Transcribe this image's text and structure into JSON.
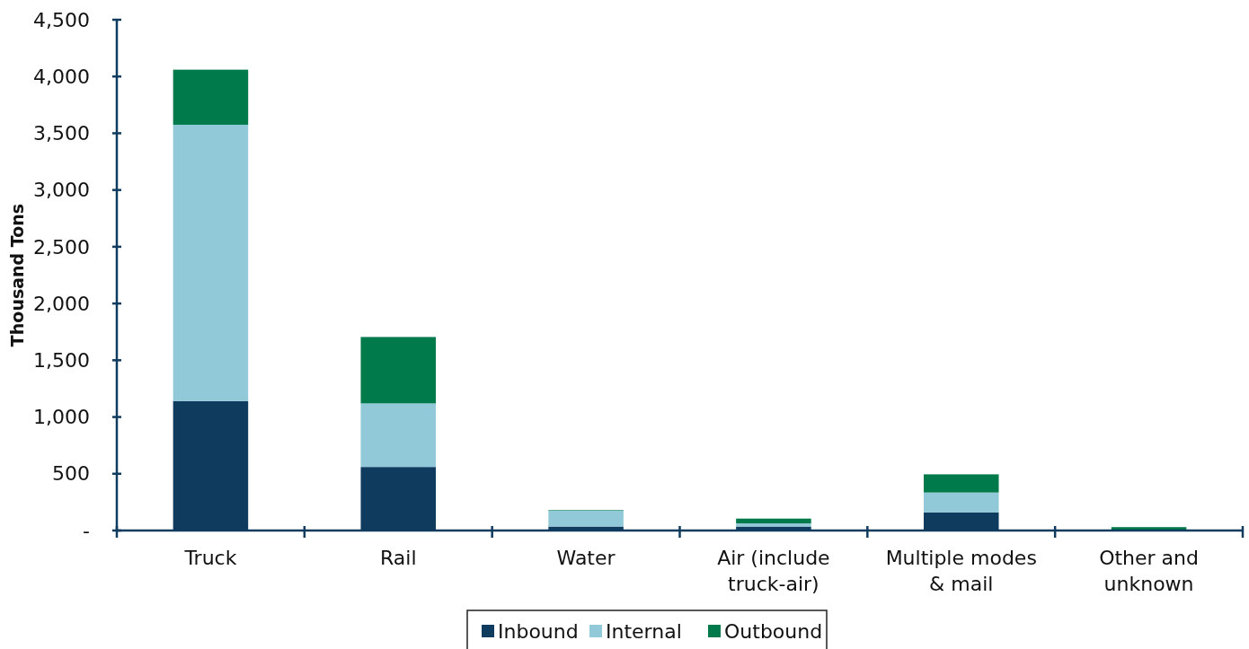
{
  "chart_data": {
    "type": "bar",
    "stacked": true,
    "ylabel": "Thousand Tons",
    "categories": [
      "Truck",
      "Rail",
      "Water",
      "Air (include truck-air)",
      "Multiple modes & mail",
      "Other and unknown"
    ],
    "series": [
      {
        "name": "Inbound",
        "color": "#0f3b5f",
        "values": [
          1140,
          560,
          35,
          35,
          160,
          null
        ]
      },
      {
        "name": "Internal",
        "color": "#92c9d9",
        "values": [
          2435,
          560,
          140,
          28,
          175,
          null
        ]
      },
      {
        "name": "Outbound",
        "color": "#007a4a",
        "values": [
          485,
          585,
          5,
          42,
          160,
          30
        ]
      }
    ],
    "ylim": [
      0,
      4500
    ],
    "yticks": [
      {
        "value": 0,
        "label": "-"
      },
      500,
      {
        "value": 1000,
        "label": "1,000"
      },
      {
        "value": 1500,
        "label": "1,500"
      },
      {
        "value": 2000,
        "label": "2,000"
      },
      {
        "value": 2500,
        "label": "2,500"
      },
      {
        "value": 3000,
        "label": "3,000"
      },
      {
        "value": 3500,
        "label": "3,500"
      },
      {
        "value": 4000,
        "label": "4,000"
      },
      {
        "value": 4500,
        "label": "4,500"
      }
    ],
    "grid": false,
    "legend": "bottom"
  }
}
